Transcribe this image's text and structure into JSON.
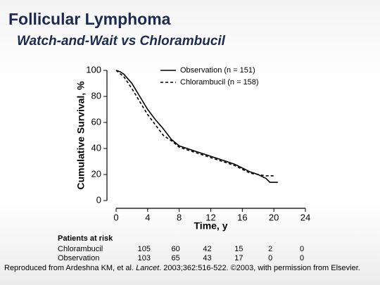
{
  "header": {
    "title": "Follicular Lymphoma",
    "subtitle": "Watch-and-Wait vs Chlorambucil"
  },
  "chart_data": {
    "type": "line",
    "y_label": "Cumulative Survival, %",
    "x_label": "Time, y",
    "xlim": [
      0,
      24
    ],
    "xticks": [
      0,
      4,
      8,
      12,
      16,
      20,
      24
    ],
    "ylim": [
      0,
      100
    ],
    "yticks": [
      0,
      20,
      40,
      60,
      80,
      100
    ],
    "legend": "top",
    "series": [
      {
        "name": "Observation (n = 151)",
        "color": "#000000",
        "line_style": "solid",
        "x": [
          0,
          0.5,
          1,
          2,
          3,
          4,
          5,
          6,
          7,
          8,
          9,
          10,
          11,
          12,
          13,
          14,
          15,
          16,
          17,
          18,
          19,
          19.5,
          20.5
        ],
        "values": [
          100,
          99,
          97,
          90,
          80,
          70,
          62,
          55,
          47,
          42,
          40,
          38,
          36,
          34,
          32,
          30,
          28,
          25,
          22,
          20,
          17,
          14,
          14
        ]
      },
      {
        "name": "Chlorambucil (n = 158)",
        "color": "#000000",
        "line_style": "dashed",
        "x": [
          0,
          1,
          2,
          3,
          4,
          5,
          6,
          7,
          8,
          9,
          10,
          11,
          12,
          13,
          14,
          15,
          16,
          17,
          18,
          19,
          20
        ],
        "values": [
          100,
          95,
          86,
          76,
          66,
          58,
          50,
          46,
          41,
          39,
          37,
          35,
          33,
          31,
          29,
          27,
          24,
          21,
          20,
          19,
          19
        ]
      }
    ]
  },
  "at_risk": {
    "title": "Patients at risk",
    "rows": [
      {
        "name": "Chlorambucil",
        "values": [
          105,
          60,
          42,
          15,
          2,
          0
        ]
      },
      {
        "name": "Observation",
        "values": [
          103,
          65,
          43,
          17,
          0,
          0
        ]
      }
    ]
  },
  "footer": {
    "parts": [
      "Reproduced from Ardeshna KM, et al. ",
      "Lancet",
      ". 2003;362:516-522. ©2003, with permission from Elsevier."
    ]
  }
}
